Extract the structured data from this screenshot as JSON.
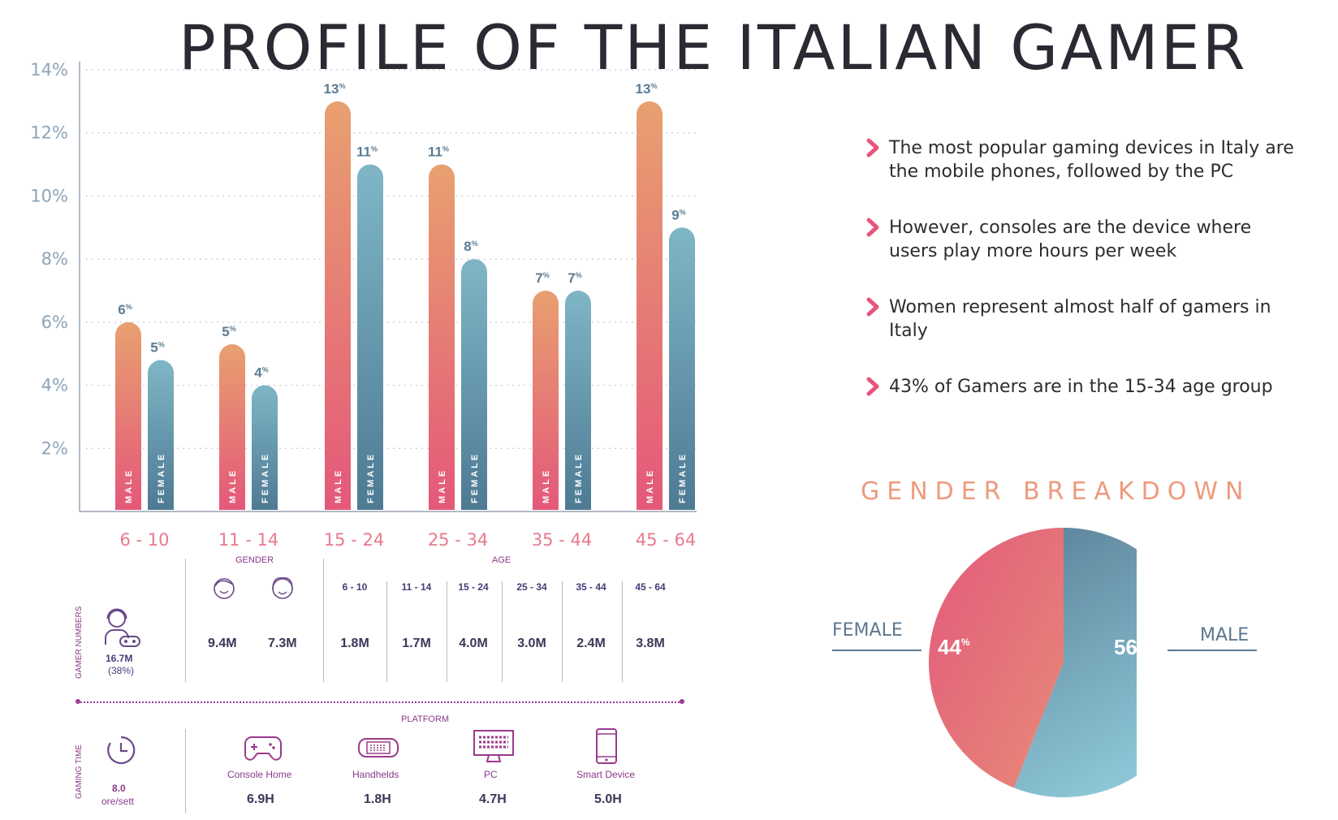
{
  "title": "PROFILE OF THE ITALIAN GAMER",
  "chart_data": {
    "type": "bar",
    "categories": [
      "6 - 10",
      "11 - 14",
      "15 - 24",
      "25 - 34",
      "35 - 44",
      "45 - 64"
    ],
    "series": [
      {
        "name": "MALE",
        "values": [
          6,
          5.3,
          13,
          11,
          7,
          13
        ],
        "labels": [
          "6",
          "5",
          "13",
          "11",
          "7",
          "13"
        ],
        "color_top": "#e8a070",
        "color_bottom": "#e4587a"
      },
      {
        "name": "FEMALE",
        "values": [
          4.8,
          4,
          11,
          8,
          7,
          9
        ],
        "labels": [
          "5",
          "4",
          "11",
          "8",
          "7",
          "9"
        ],
        "color_top": "#7fb6c6",
        "color_bottom": "#4e7a94"
      }
    ],
    "label_suffix": "%",
    "ylim": [
      0,
      14
    ],
    "yticks": [
      "2%",
      "4%",
      "6%",
      "8%",
      "10%",
      "12%",
      "14%"
    ],
    "grid": true
  },
  "bullets": [
    "The most popular gaming devices in Italy are the mobile phones, followed by the PC",
    "However, consoles are the device where users play more hours per week",
    "Women represent almost half of gamers in Italy",
    "43% of Gamers are in the 15-34 age group"
  ],
  "gender_breakdown": {
    "title": "GENDER BREAKDOWN",
    "female_label": "FEMALE",
    "male_label": "MALE",
    "female_pct": "44",
    "male_pct": "56",
    "pct_suffix": "%",
    "female_value": 44,
    "male_value": 56,
    "female_color": "#e0607a",
    "male_color": "#5f8aa0"
  },
  "table": {
    "gamer_numbers_label": "GAMER NUMBERS",
    "gaming_time_label": "GAMING TIME",
    "gender_header": "GENDER",
    "age_header": "AGE",
    "platform_header": "PLATFORM",
    "total_gamers": "16.7M",
    "total_pct": "(38%)",
    "male_gamers": "9.4M",
    "female_gamers": "7.3M",
    "age_groups": [
      {
        "label": "6 - 10",
        "value": "1.8M"
      },
      {
        "label": "11 - 14",
        "value": "1.7M"
      },
      {
        "label": "15 - 24",
        "value": "4.0M"
      },
      {
        "label": "25 - 34",
        "value": "3.0M"
      },
      {
        "label": "35 - 44",
        "value": "2.4M"
      },
      {
        "label": "45 - 64",
        "value": "3.8M"
      }
    ],
    "total_time": "8.0",
    "time_unit": "ore/sett",
    "platforms": [
      {
        "label": "Console Home",
        "value": "6.9H",
        "icon": "gamepad-icon"
      },
      {
        "label": "Handhelds",
        "value": "1.8H",
        "icon": "handheld-icon"
      },
      {
        "label": "PC",
        "value": "4.7H",
        "icon": "pc-icon"
      },
      {
        "label": "Smart Device",
        "value": "5.0H",
        "icon": "smartphone-icon"
      }
    ]
  }
}
